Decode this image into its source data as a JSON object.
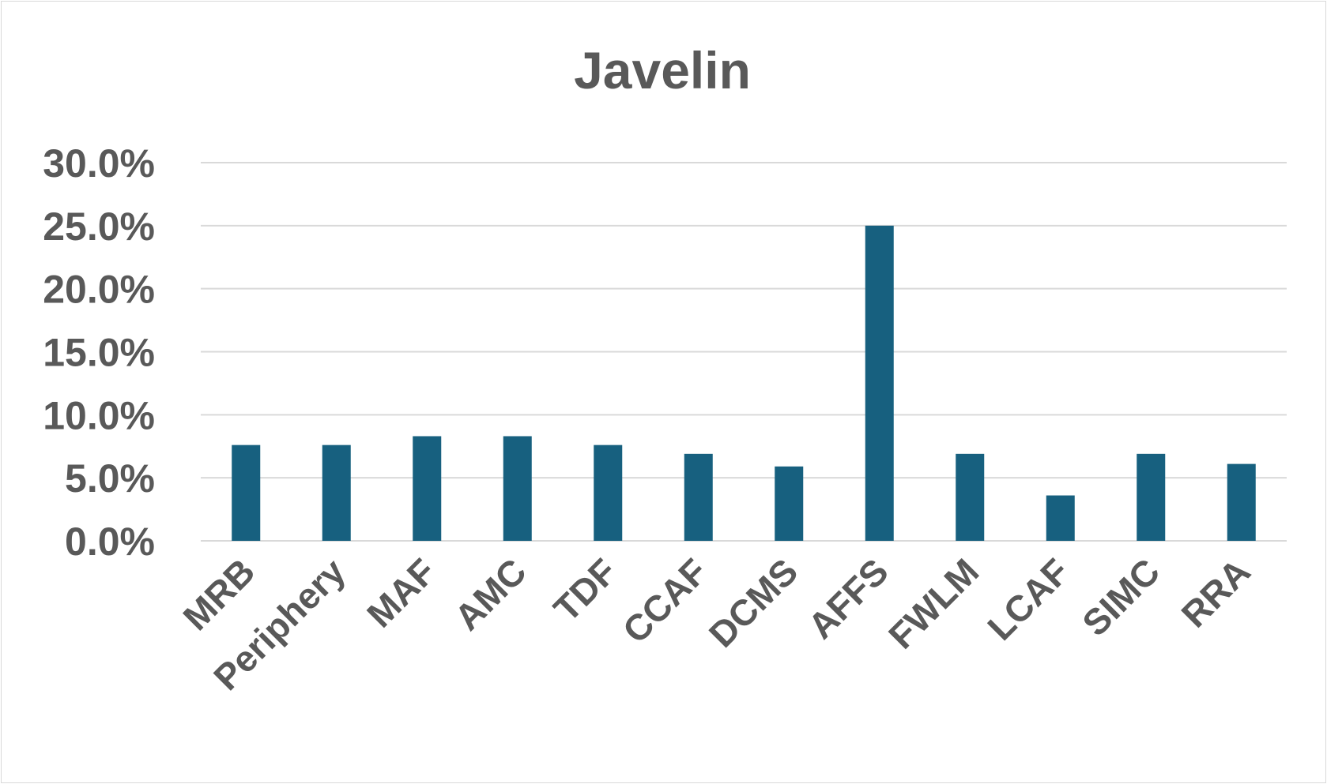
{
  "chart_data": {
    "type": "bar",
    "title": "Javelin",
    "xlabel": "",
    "ylabel": "",
    "categories": [
      "MRB",
      "Periphery",
      "MAF",
      "AMC",
      "TDF",
      "CCAF",
      "DCMS",
      "AFFS",
      "FWLM",
      "LCAF",
      "SIMC",
      "RRA"
    ],
    "values": [
      7.6,
      7.6,
      8.3,
      8.3,
      7.6,
      6.9,
      5.9,
      25.0,
      6.9,
      3.6,
      6.9,
      6.1
    ],
    "ylim": [
      0,
      30
    ],
    "yticks": [
      0,
      5,
      10,
      15,
      20,
      25,
      30
    ],
    "ytick_labels": [
      "0.0%",
      "5.0%",
      "10.0%",
      "15.0%",
      "20.0%",
      "25.0%",
      "30.0%"
    ],
    "grid": true,
    "legend": "none",
    "bar_color": "#17607f"
  }
}
